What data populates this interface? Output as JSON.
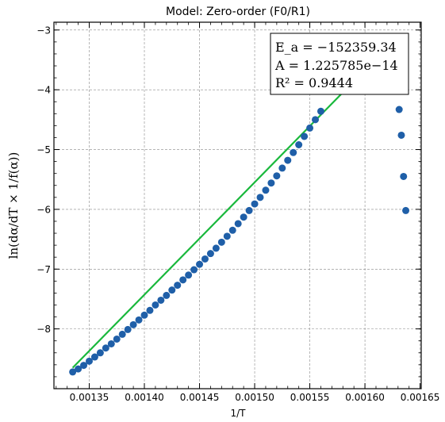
{
  "chart_data": {
    "type": "scatter",
    "title": "Model: Zero-order (F0/R1)",
    "xlabel": "1/T",
    "ylabel": "ln(dα/dT × 1/f(α))",
    "xlim": [
      0.001318,
      0.001651
    ],
    "ylim": [
      -9.0,
      -2.87
    ],
    "x_ticks": [
      0.00135,
      0.0014,
      0.00145,
      0.0015,
      0.00155,
      0.0016,
      0.00165
    ],
    "x_tick_labels": [
      "0.00135",
      "0.00140",
      "0.00145",
      "0.00150",
      "0.00155",
      "0.00160",
      "0.00165"
    ],
    "y_ticks": [
      -8,
      -7,
      -6,
      -5,
      -4,
      -3
    ],
    "y_tick_labels": [
      "−8",
      "−7",
      "−6",
      "−5",
      "−4",
      "−3"
    ],
    "grid": true,
    "colors": {
      "points": "#1f5fa8",
      "fit": "#19b83c"
    },
    "series": [
      {
        "kind": "points",
        "x": [
          0.001335,
          0.00134,
          0.001345,
          0.00135,
          0.001355,
          0.00136,
          0.001365,
          0.00137,
          0.001375,
          0.00138,
          0.001385,
          0.00139,
          0.001395,
          0.0014,
          0.001405,
          0.00141,
          0.001415,
          0.00142,
          0.001425,
          0.00143,
          0.001435,
          0.00144,
          0.001445,
          0.00145,
          0.001455,
          0.00146,
          0.001465,
          0.00147,
          0.001475,
          0.00148,
          0.001485,
          0.00149,
          0.001495,
          0.0015,
          0.001505,
          0.00151,
          0.001515,
          0.00152,
          0.001525,
          0.00153,
          0.001535,
          0.00154,
          0.001545,
          0.00155,
          0.001555,
          0.00156,
          0.001628,
          0.001631,
          0.001633,
          0.001635,
          0.001637
        ],
        "y": [
          -8.72,
          -8.67,
          -8.61,
          -8.54,
          -8.47,
          -8.4,
          -8.32,
          -8.25,
          -8.17,
          -8.09,
          -8.01,
          -7.93,
          -7.85,
          -7.77,
          -7.69,
          -7.6,
          -7.52,
          -7.44,
          -7.35,
          -7.27,
          -7.18,
          -7.1,
          -7.01,
          -6.92,
          -6.83,
          -6.74,
          -6.65,
          -6.55,
          -6.45,
          -6.35,
          -6.24,
          -6.13,
          -6.02,
          -5.91,
          -5.8,
          -5.68,
          -5.56,
          -5.44,
          -5.31,
          -5.18,
          -5.05,
          -4.92,
          -4.78,
          -4.64,
          -4.5,
          -4.36,
          -4.02,
          -4.33,
          -4.76,
          -5.45,
          -6.02
        ]
      },
      {
        "kind": "fit",
        "x": [
          0.001335,
          0.001585
        ],
        "y": [
          -8.65,
          -3.95
        ]
      }
    ],
    "annotation": {
      "lines": [
        "E_a = −152359.34",
        "A = 1.225785e−14",
        "R² = 0.9444"
      ],
      "placement": "top-right"
    }
  }
}
